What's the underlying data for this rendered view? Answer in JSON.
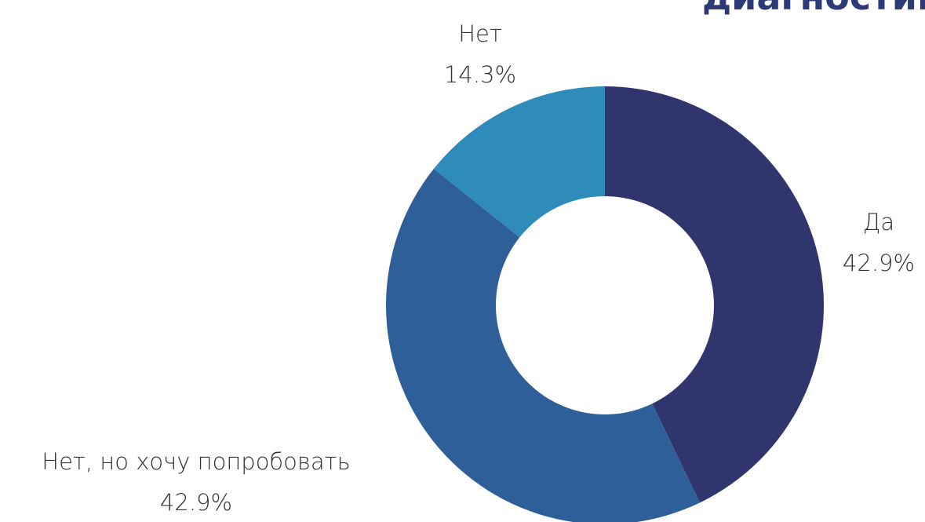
{
  "chart_data": {
    "type": "donut",
    "title": "диагностике",
    "categories": [
      "Да",
      "Нет, но хочу попробовать",
      "Нет"
    ],
    "values": [
      42.9,
      42.9,
      14.3
    ],
    "value_labels": [
      "42.9%",
      "42.9%",
      "14.3%"
    ],
    "colors": [
      "#31356e",
      "#2f5f98",
      "#2e8bba"
    ]
  }
}
